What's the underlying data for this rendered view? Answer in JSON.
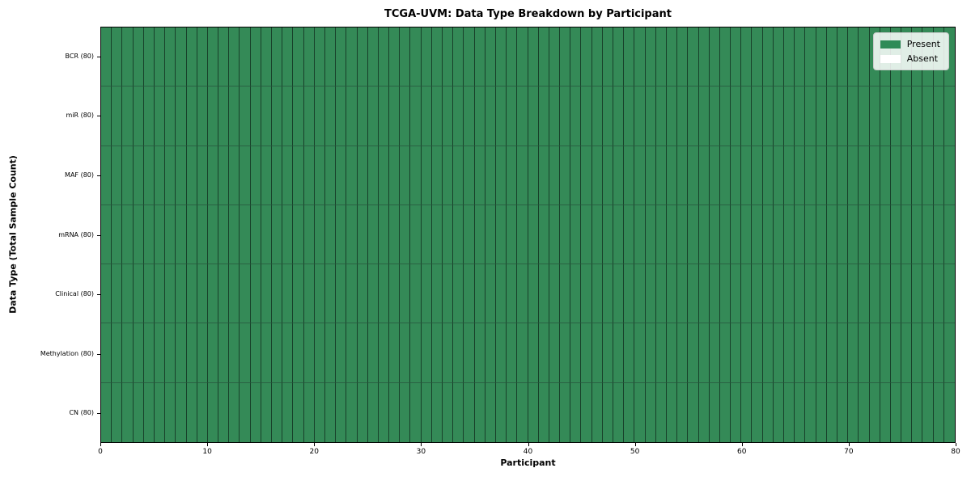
{
  "chart_data": {
    "type": "heatmap",
    "title": "TCGA-UVM: Data Type Breakdown by Participant",
    "xlabel": "Participant",
    "ylabel": "Data Type (Total Sample Count)",
    "xlim": [
      0,
      80
    ],
    "x_ticks": [
      0,
      10,
      20,
      30,
      40,
      50,
      60,
      70,
      80
    ],
    "columns": 80,
    "rows": [
      {
        "label": "BCR (80)",
        "data_type": "BCR",
        "total_samples": 80,
        "present": 80,
        "absent": 0
      },
      {
        "label": "miR (80)",
        "data_type": "miR",
        "total_samples": 80,
        "present": 80,
        "absent": 0
      },
      {
        "label": "MAF (80)",
        "data_type": "MAF",
        "total_samples": 80,
        "present": 80,
        "absent": 0
      },
      {
        "label": "mRNA (80)",
        "data_type": "mRNA",
        "total_samples": 80,
        "present": 80,
        "absent": 0
      },
      {
        "label": "Clinical (80)",
        "data_type": "Clinical",
        "total_samples": 80,
        "present": 80,
        "absent": 0
      },
      {
        "label": "Methylation (80)",
        "data_type": "Methylation",
        "total_samples": 80,
        "present": 80,
        "absent": 0
      },
      {
        "label": "CN (80)",
        "data_type": "CN",
        "total_samples": 80,
        "present": 80,
        "absent": 0
      }
    ],
    "legend": {
      "position": "upper right",
      "entries": [
        {
          "label": "Present",
          "color": "#2e8b57"
        },
        {
          "label": "Absent",
          "color": "#ffffff"
        }
      ]
    },
    "colors": {
      "present": "#348a57",
      "absent": "#ffffff",
      "cell_border_vertical": "#18402a",
      "cell_border_horizontal": "#2a6243",
      "axes_border": "#000000",
      "text": "#000000",
      "background": "#ffffff"
    }
  }
}
